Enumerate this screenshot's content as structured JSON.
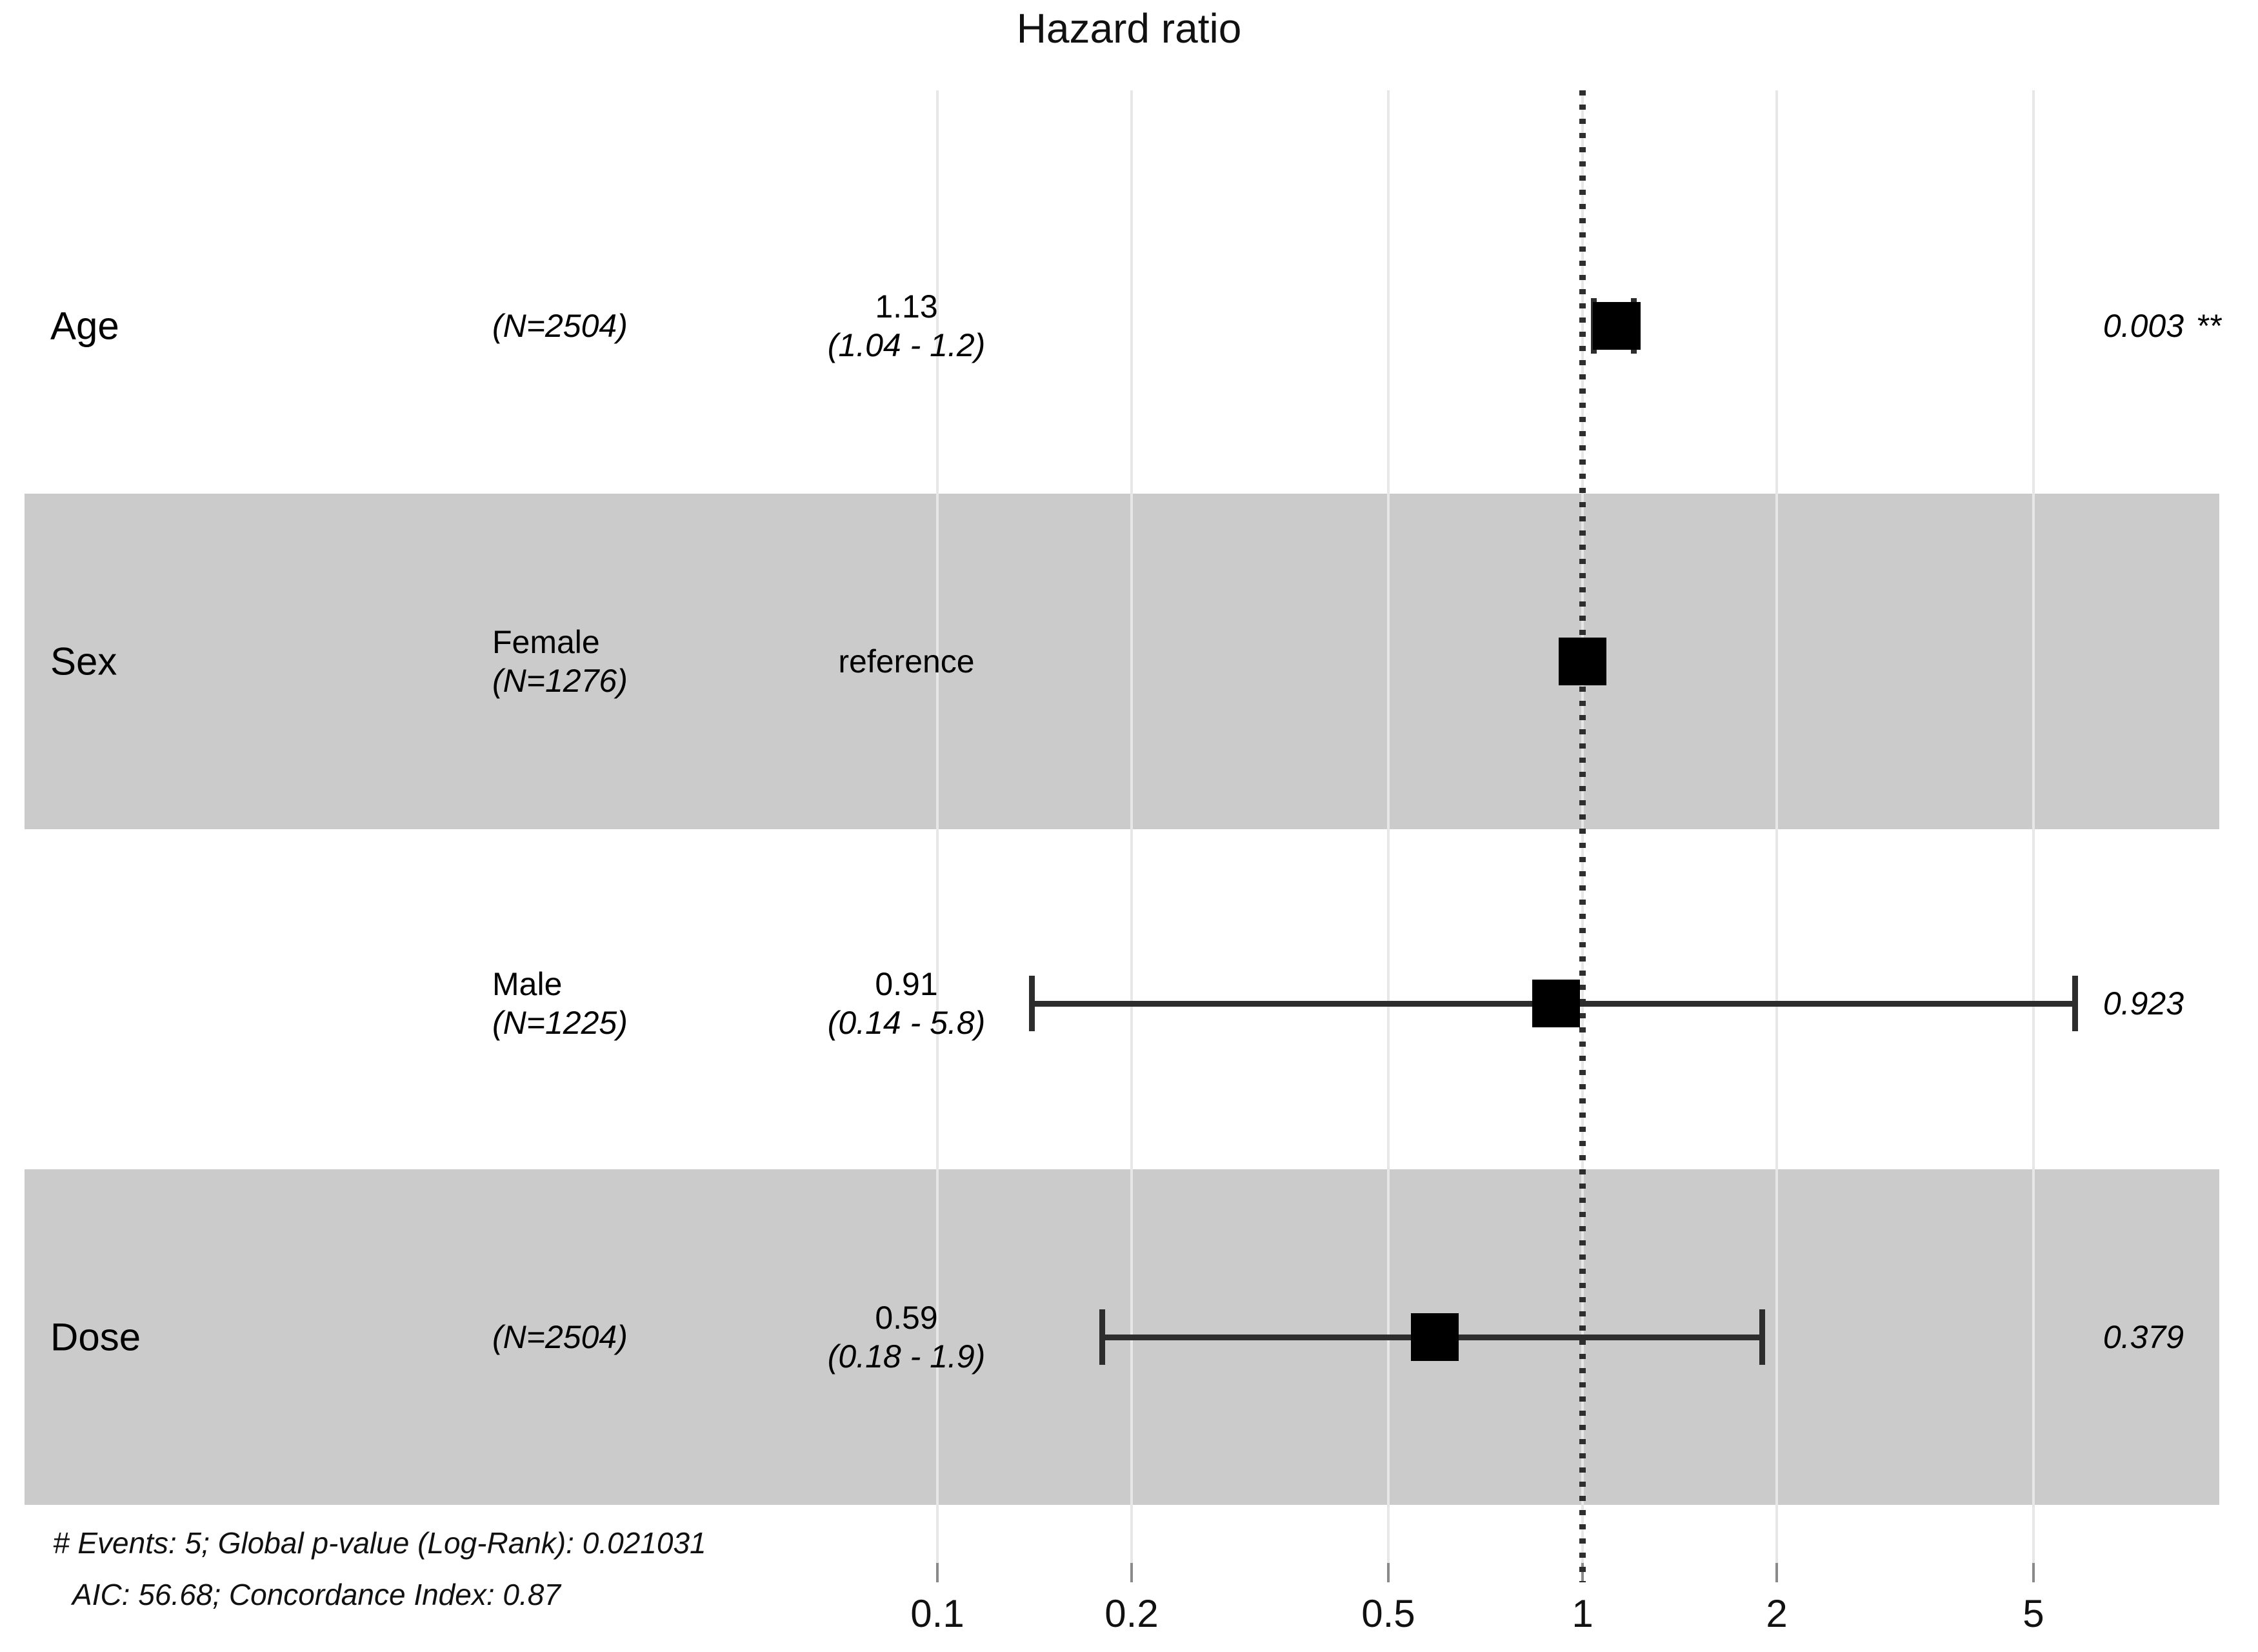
{
  "title": "Hazard ratio",
  "colors": {
    "band": "#cbcbcb",
    "gridline": "#e7e7e7",
    "tick": "#8a8a8a",
    "reference_line": "#2e2e2e",
    "marker": "#000000",
    "ci_line": "#2d2d2d"
  },
  "chart_data": {
    "type": "forest",
    "title": "Hazard ratio",
    "x_scale": "log10",
    "x_ticks": [
      0.1,
      0.2,
      0.5,
      1,
      2,
      5
    ],
    "x_range": [
      0.1,
      5.8
    ],
    "reference_line": 1,
    "grid": true,
    "rows": [
      {
        "variable": "Age",
        "group": "",
        "n_label": "(N=2504)",
        "estimate": 1.13,
        "ci_low": 1.04,
        "ci_high": 1.2,
        "estimate_label": "1.13",
        "ci_label": "(1.04 - 1.2)",
        "p_label": "0.003",
        "significance": "**",
        "shaded": false
      },
      {
        "variable": "Sex",
        "group": "Female",
        "n_label": "(N=1276)",
        "estimate": 1,
        "ci_low": null,
        "ci_high": null,
        "estimate_label": "reference",
        "ci_label": "",
        "p_label": "",
        "significance": "",
        "shaded": true
      },
      {
        "variable": "",
        "group": "Male",
        "n_label": "(N=1225)",
        "estimate": 0.91,
        "ci_low": 0.14,
        "ci_high": 5.8,
        "estimate_label": "0.91",
        "ci_label": "(0.14 - 5.8)",
        "p_label": "0.923",
        "significance": "",
        "shaded": false
      },
      {
        "variable": "Dose",
        "group": "",
        "n_label": "(N=2504)",
        "estimate": 0.59,
        "ci_low": 0.18,
        "ci_high": 1.9,
        "estimate_label": "0.59",
        "ci_label": "(0.18 - 1.9)",
        "p_label": "0.379",
        "significance": "",
        "shaded": true
      }
    ],
    "footer": [
      "# Events: 5; Global p-value (Log-Rank): 0.021031",
      "AIC: 56.68; Concordance Index: 0.87"
    ]
  }
}
